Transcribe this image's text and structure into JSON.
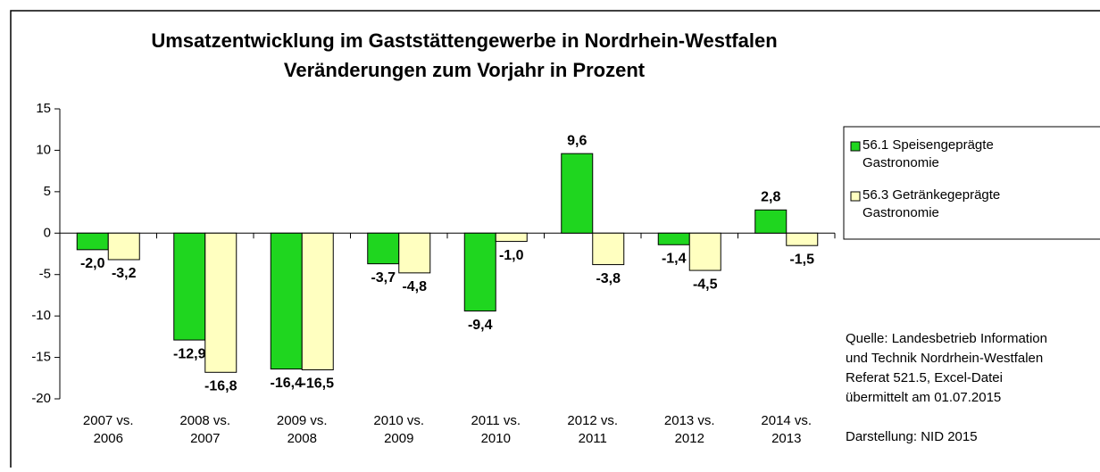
{
  "chart_data": {
    "type": "bar",
    "title": "Umsatzentwicklung im Gaststättengewerbe in Nordrhein-Westfalen",
    "subtitle": "Veränderungen zum Vorjahr in Prozent",
    "categories": [
      "2007 vs. 2006",
      "2008 vs. 2007",
      "2009 vs. 2008",
      "2010 vs. 2009",
      "2011 vs. 2010",
      "2012 vs. 2011",
      "2013 vs. 2012",
      "2014 vs. 2013"
    ],
    "series": [
      {
        "name": "56.1 Speisengeprägte Gastronomie",
        "color": "#1fd61f",
        "values": [
          -2.0,
          -12.9,
          -16.4,
          -3.7,
          -9.4,
          9.6,
          -1.4,
          2.8
        ],
        "value_labels": [
          "-2,0",
          "-12,9",
          "-16,4",
          "-3,7",
          "-9,4",
          "9,6",
          "-1,4",
          "2,8"
        ]
      },
      {
        "name": "56.3 Getränkegeprägte Gastronomie",
        "color": "#ffffc0",
        "values": [
          -3.2,
          -16.8,
          -16.5,
          -4.8,
          -1.0,
          -3.8,
          -4.5,
          -1.5
        ],
        "value_labels": [
          "-3,2",
          "-16,8",
          "-16,5",
          "-4,8",
          "-1,0",
          "-3,8",
          "-4,5",
          "-1,5"
        ]
      }
    ],
    "ylim": [
      -20,
      15
    ],
    "yticks": [
      -20,
      -15,
      -10,
      -5,
      0,
      5,
      10,
      15
    ],
    "legend": "right",
    "notes": [
      "Quelle: Landesbetrieb Information",
      "und Technik Nordrhein-Westfalen",
      "Referat 521.5, Excel-Datei",
      "übermittelt am 01.07.2015",
      "",
      "Darstellung: NID 2015"
    ]
  }
}
